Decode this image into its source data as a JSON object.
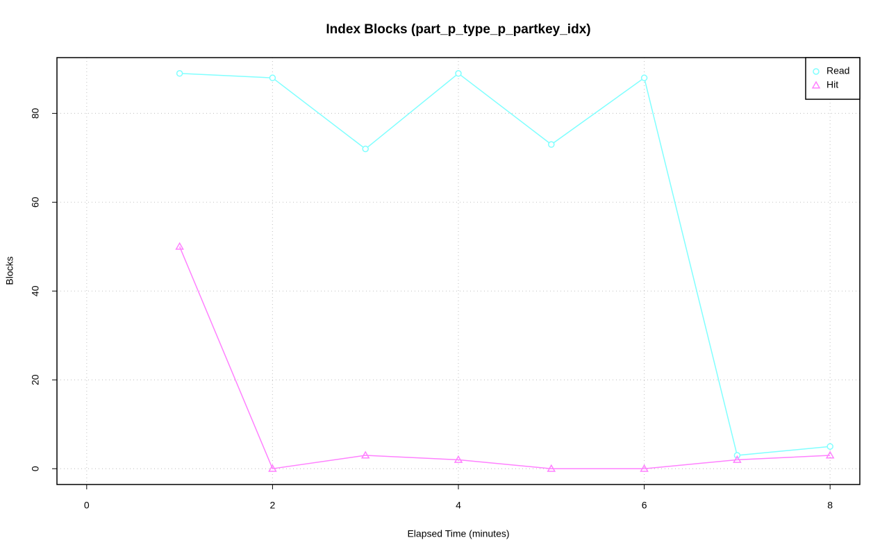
{
  "chart_data": {
    "type": "line",
    "title": "Index Blocks (part_p_type_p_partkey_idx)",
    "x_label": "Elapsed Time (minutes)",
    "y_label": "Blocks",
    "x": [
      1,
      2,
      3,
      4,
      5,
      6,
      7,
      8
    ],
    "series": [
      {
        "name": "Read",
        "color": "#80ffff",
        "marker": "circle",
        "values": [
          89,
          88,
          72,
          89,
          73,
          88,
          3,
          5
        ]
      },
      {
        "name": "Hit",
        "color": "#ff80ff",
        "marker": "triangle",
        "values": [
          50,
          0,
          3,
          2,
          0,
          0,
          2,
          3
        ]
      }
    ],
    "xlim": [
      -0.32,
      8.32
    ],
    "xticks": [
      0,
      2,
      4,
      6,
      8
    ],
    "ylim": [
      -3.56,
      92.56
    ],
    "yticks": [
      0,
      20,
      40,
      60,
      80
    ],
    "grid": true,
    "legend": "topright"
  }
}
